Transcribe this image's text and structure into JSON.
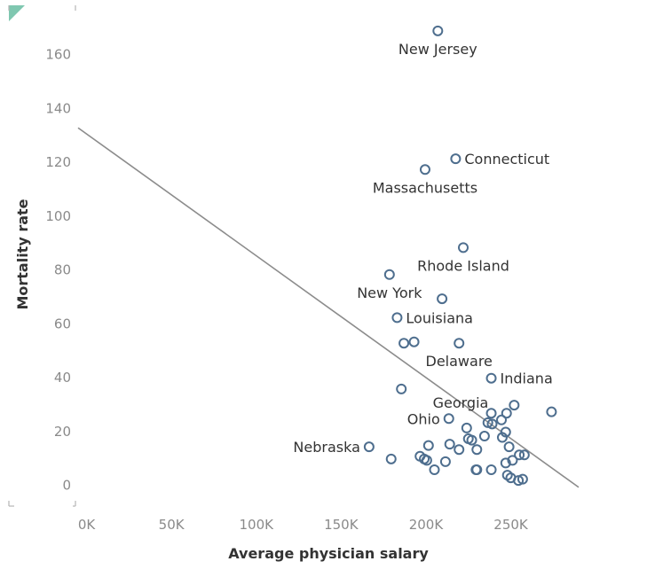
{
  "chart_data": {
    "type": "scatter",
    "xlabel": "Average physician salary",
    "ylabel": "Mortality rate",
    "xlim": [
      -5000,
      290000
    ],
    "ylim": [
      -8,
      178
    ],
    "x_ticks": [
      0,
      50000,
      100000,
      150000,
      200000,
      250000
    ],
    "x_tick_labels": [
      "0K",
      "50K",
      "100K",
      "150K",
      "200K",
      "250K"
    ],
    "y_ticks": [
      0,
      20,
      40,
      60,
      80,
      100,
      120,
      140,
      160
    ],
    "y_tick_labels": [
      "0",
      "20",
      "40",
      "60",
      "80",
      "100",
      "120",
      "140",
      "160"
    ],
    "point_color": "#4e6e8e",
    "trend_color": "#8c8c8c",
    "trend_line": {
      "x": [
        -5000,
        290000
      ],
      "y": [
        132.5,
        -1
      ]
    },
    "grid": false,
    "points": [
      {
        "x": 207000,
        "y": 168.5,
        "label": "New Jersey",
        "anchor": "middle",
        "pos": "below"
      },
      {
        "x": 217500,
        "y": 121,
        "label": "Connecticut",
        "anchor": "start",
        "pos": "right"
      },
      {
        "x": 199500,
        "y": 117,
        "label": "Massachusetts",
        "anchor": "middle",
        "pos": "below"
      },
      {
        "x": 222000,
        "y": 88,
        "label": "Rhode Island",
        "anchor": "middle",
        "pos": "below"
      },
      {
        "x": 178500,
        "y": 78,
        "label": "New York",
        "anchor": "middle",
        "pos": "below"
      },
      {
        "x": 209500,
        "y": 69
      },
      {
        "x": 183000,
        "y": 62,
        "label": "Louisiana",
        "anchor": "start",
        "pos": "right"
      },
      {
        "x": 187000,
        "y": 52.5
      },
      {
        "x": 193000,
        "y": 53
      },
      {
        "x": 219500,
        "y": 52.5,
        "label": "Delaware",
        "anchor": "middle",
        "pos": "below"
      },
      {
        "x": 238500,
        "y": 39.5,
        "label": "Indiana",
        "anchor": "start",
        "pos": "right"
      },
      {
        "x": 185500,
        "y": 35.5,
        "label": "Georgia",
        "anchor": "start",
        "pos": "custom",
        "lx": 204000,
        "ly": 30.5
      },
      {
        "x": 238500,
        "y": 26.5
      },
      {
        "x": 247500,
        "y": 26.5
      },
      {
        "x": 252000,
        "y": 29.5
      },
      {
        "x": 274000,
        "y": 27
      },
      {
        "x": 213500,
        "y": 24.5,
        "label": "Ohio",
        "anchor": "end",
        "pos": "left"
      },
      {
        "x": 236500,
        "y": 23
      },
      {
        "x": 239000,
        "y": 22.5
      },
      {
        "x": 244500,
        "y": 24
      },
      {
        "x": 224000,
        "y": 21
      },
      {
        "x": 247000,
        "y": 19.5
      },
      {
        "x": 234500,
        "y": 18
      },
      {
        "x": 245000,
        "y": 17.5
      },
      {
        "x": 225000,
        "y": 17
      },
      {
        "x": 227000,
        "y": 16.5
      },
      {
        "x": 214000,
        "y": 15
      },
      {
        "x": 201500,
        "y": 14.5
      },
      {
        "x": 166500,
        "y": 14,
        "label": "Nebraska",
        "anchor": "end",
        "pos": "left"
      },
      {
        "x": 249000,
        "y": 14
      },
      {
        "x": 219500,
        "y": 13
      },
      {
        "x": 230000,
        "y": 13
      },
      {
        "x": 255000,
        "y": 11
      },
      {
        "x": 258000,
        "y": 11
      },
      {
        "x": 196500,
        "y": 10.5
      },
      {
        "x": 179500,
        "y": 9.5
      },
      {
        "x": 199000,
        "y": 9.5
      },
      {
        "x": 200500,
        "y": 9
      },
      {
        "x": 251000,
        "y": 9
      },
      {
        "x": 211500,
        "y": 8.5
      },
      {
        "x": 247000,
        "y": 8
      },
      {
        "x": 205000,
        "y": 5.5
      },
      {
        "x": 229500,
        "y": 5.5
      },
      {
        "x": 230000,
        "y": 5.5
      },
      {
        "x": 238500,
        "y": 5.5
      },
      {
        "x": 248000,
        "y": 3.5
      },
      {
        "x": 250000,
        "y": 2.5
      },
      {
        "x": 254500,
        "y": 1.5
      },
      {
        "x": 257000,
        "y": 2
      }
    ]
  }
}
